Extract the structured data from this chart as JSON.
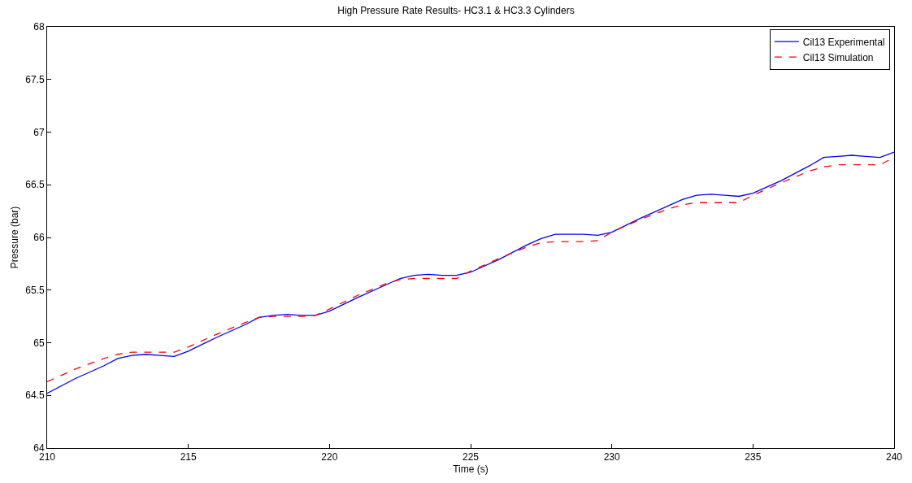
{
  "chart_data": {
    "type": "line",
    "title": "High Pressure Rate Results- HC3.1 & HC3.3 Cylinders",
    "xlabel": "Time (s)",
    "ylabel": "Pressure (bar)",
    "xlim": [
      210,
      240
    ],
    "xticks": [
      210,
      215,
      220,
      225,
      230,
      235,
      240
    ],
    "ylim": [
      64,
      68
    ],
    "yticks": [
      64,
      64.5,
      65,
      65.5,
      66,
      66.5,
      67,
      67.5,
      68
    ],
    "legend": "top right",
    "marker": "none",
    "series": [
      {
        "name": "Cil13 Experimental",
        "color": "#0000ff",
        "line_style": "solid",
        "x": [
          210,
          211,
          212,
          212.5,
          213,
          213.5,
          214,
          214.5,
          215,
          216,
          217,
          217.5,
          218,
          218.5,
          219,
          219.5,
          220,
          221,
          222,
          222.5,
          223,
          223.5,
          224,
          224.5,
          225,
          226,
          227,
          227.5,
          228,
          228.5,
          229,
          229.5,
          230,
          231,
          232,
          232.5,
          233,
          233.5,
          234,
          234.5,
          235,
          236,
          237,
          237.5,
          238,
          238.5,
          239,
          239.5,
          240
        ],
        "values": [
          64.52,
          64.66,
          64.78,
          64.85,
          64.88,
          64.89,
          64.88,
          64.87,
          64.92,
          65.05,
          65.17,
          65.24,
          65.26,
          65.27,
          65.26,
          65.26,
          65.3,
          65.43,
          65.55,
          65.61,
          65.64,
          65.65,
          65.64,
          65.64,
          65.67,
          65.79,
          65.93,
          65.99,
          66.03,
          66.03,
          66.03,
          66.02,
          66.05,
          66.18,
          66.3,
          66.36,
          66.4,
          66.41,
          66.4,
          66.39,
          66.42,
          66.54,
          66.68,
          66.76,
          66.77,
          66.78,
          66.77,
          66.76,
          66.81
        ]
      },
      {
        "name": "Cil13 Simulation",
        "color": "#ff0000",
        "line_style": "dashed",
        "x": [
          210,
          211,
          212,
          212.5,
          213,
          214,
          214.5,
          215,
          216,
          217,
          217.5,
          218,
          219,
          219.5,
          220,
          221,
          222,
          222.5,
          223,
          224,
          224.5,
          225,
          226,
          227,
          227.5,
          228,
          229,
          229.5,
          230,
          231,
          232,
          232.5,
          233,
          234,
          234.5,
          235,
          236,
          237,
          237.5,
          238,
          239,
          239.5,
          240
        ],
        "values": [
          64.63,
          64.75,
          64.85,
          64.89,
          64.91,
          64.91,
          64.91,
          64.96,
          65.08,
          65.19,
          65.24,
          65.25,
          65.25,
          65.26,
          65.32,
          65.45,
          65.56,
          65.6,
          65.61,
          65.61,
          65.61,
          65.68,
          65.8,
          65.91,
          65.95,
          65.96,
          65.96,
          65.97,
          66.05,
          66.17,
          66.27,
          66.31,
          66.33,
          66.33,
          66.33,
          66.4,
          66.52,
          66.63,
          66.67,
          66.69,
          66.69,
          66.69,
          66.76
        ]
      }
    ]
  }
}
